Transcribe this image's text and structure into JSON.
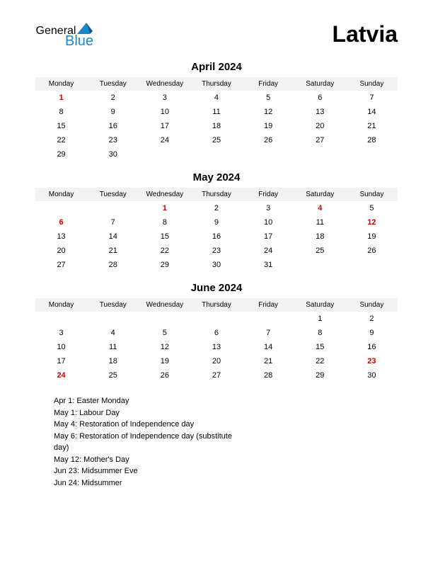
{
  "brand": {
    "part1": "General",
    "part2": "Blue",
    "color1": "#000000",
    "color2": "#1b87c9",
    "triangle_color": "#1b87c9"
  },
  "country": "Latvia",
  "weekday_headers": [
    "Monday",
    "Tuesday",
    "Wednesday",
    "Thursday",
    "Friday",
    "Saturday",
    "Sunday"
  ],
  "styles": {
    "holiday_color": "#cc0000",
    "header_bg": "#f2f2f2",
    "text_color": "#000000",
    "background": "#ffffff",
    "title_fontsize": 15,
    "header_fontsize": 10,
    "cell_fontsize": 11
  },
  "months": [
    {
      "title": "April 2024",
      "weeks": [
        [
          {
            "n": 1,
            "h": true
          },
          {
            "n": 2
          },
          {
            "n": 3
          },
          {
            "n": 4
          },
          {
            "n": 5
          },
          {
            "n": 6
          },
          {
            "n": 7
          }
        ],
        [
          {
            "n": 8
          },
          {
            "n": 9
          },
          {
            "n": 10
          },
          {
            "n": 11
          },
          {
            "n": 12
          },
          {
            "n": 13
          },
          {
            "n": 14
          }
        ],
        [
          {
            "n": 15
          },
          {
            "n": 16
          },
          {
            "n": 17
          },
          {
            "n": 18
          },
          {
            "n": 19
          },
          {
            "n": 20
          },
          {
            "n": 21
          }
        ],
        [
          {
            "n": 22
          },
          {
            "n": 23
          },
          {
            "n": 24
          },
          {
            "n": 25
          },
          {
            "n": 26
          },
          {
            "n": 27
          },
          {
            "n": 28
          }
        ],
        [
          {
            "n": 29
          },
          {
            "n": 30
          },
          null,
          null,
          null,
          null,
          null
        ]
      ]
    },
    {
      "title": "May 2024",
      "weeks": [
        [
          null,
          null,
          {
            "n": 1,
            "h": true
          },
          {
            "n": 2
          },
          {
            "n": 3
          },
          {
            "n": 4,
            "h": true
          },
          {
            "n": 5
          }
        ],
        [
          {
            "n": 6,
            "h": true
          },
          {
            "n": 7
          },
          {
            "n": 8
          },
          {
            "n": 9
          },
          {
            "n": 10
          },
          {
            "n": 11
          },
          {
            "n": 12,
            "h": true
          }
        ],
        [
          {
            "n": 13
          },
          {
            "n": 14
          },
          {
            "n": 15
          },
          {
            "n": 16
          },
          {
            "n": 17
          },
          {
            "n": 18
          },
          {
            "n": 19
          }
        ],
        [
          {
            "n": 20
          },
          {
            "n": 21
          },
          {
            "n": 22
          },
          {
            "n": 23
          },
          {
            "n": 24
          },
          {
            "n": 25
          },
          {
            "n": 26
          }
        ],
        [
          {
            "n": 27
          },
          {
            "n": 28
          },
          {
            "n": 29
          },
          {
            "n": 30
          },
          {
            "n": 31
          },
          null,
          null
        ]
      ]
    },
    {
      "title": "June 2024",
      "weeks": [
        [
          null,
          null,
          null,
          null,
          null,
          {
            "n": 1
          },
          {
            "n": 2
          }
        ],
        [
          {
            "n": 3
          },
          {
            "n": 4
          },
          {
            "n": 5
          },
          {
            "n": 6
          },
          {
            "n": 7
          },
          {
            "n": 8
          },
          {
            "n": 9
          }
        ],
        [
          {
            "n": 10
          },
          {
            "n": 11
          },
          {
            "n": 12
          },
          {
            "n": 13
          },
          {
            "n": 14
          },
          {
            "n": 15
          },
          {
            "n": 16
          }
        ],
        [
          {
            "n": 17
          },
          {
            "n": 18
          },
          {
            "n": 19
          },
          {
            "n": 20
          },
          {
            "n": 21
          },
          {
            "n": 22
          },
          {
            "n": 23,
            "h": true
          }
        ],
        [
          {
            "n": 24,
            "h": true
          },
          {
            "n": 25
          },
          {
            "n": 26
          },
          {
            "n": 27
          },
          {
            "n": 28
          },
          {
            "n": 29
          },
          {
            "n": 30
          }
        ]
      ]
    }
  ],
  "holidays_list": [
    "Apr 1: Easter Monday",
    "May 1: Labour Day",
    "May 4: Restoration of Independence day",
    "May 6: Restoration of Independence day (substitute day)",
    "May 12: Mother's Day",
    "Jun 23: Midsummer Eve",
    "Jun 24: Midsummer"
  ]
}
